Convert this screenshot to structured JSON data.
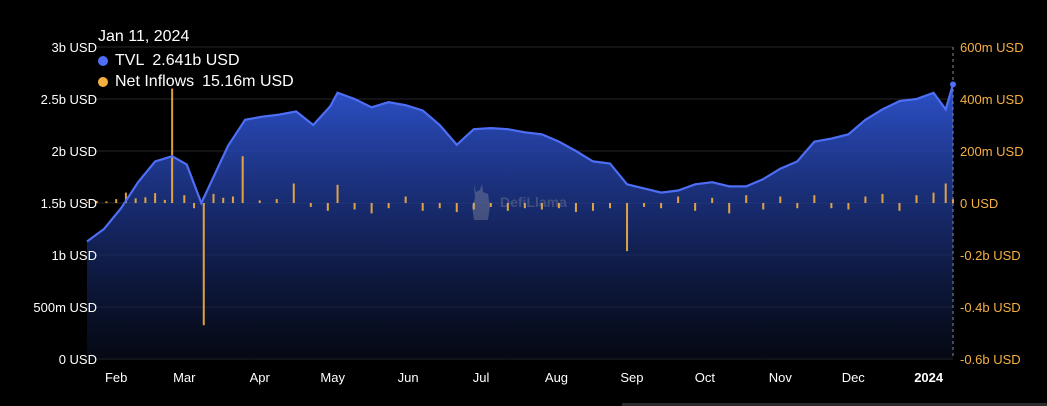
{
  "tooltip": {
    "date": "Jan 11, 2024",
    "tvl_label": "TVL",
    "tvl_value": "2.641b USD",
    "inflows_label": "Net Inflows",
    "inflows_value": "15.16m USD"
  },
  "watermark": "DefiLlama",
  "colors": {
    "tvl_line": "#4d6ef5",
    "inflows_bar": "#f5b041",
    "left_axis_text": "#ffffff",
    "right_axis_text": "#f5b041",
    "background": "#000000"
  },
  "chart_data": {
    "type": "area",
    "x_ticks": [
      "Feb",
      "Mar",
      "Apr",
      "May",
      "Jun",
      "Jul",
      "Aug",
      "Sep",
      "Oct",
      "Nov",
      "Dec",
      "2024"
    ],
    "y_left_ticks": [
      "0 USD",
      "500m USD",
      "1b USD",
      "1.5b USD",
      "2b USD",
      "2.5b USD",
      "3b USD"
    ],
    "y_right_ticks": [
      "-0.6b USD",
      "-0.4b USD",
      "-0.2b USD",
      "0 USD",
      "200m USD",
      "400m USD",
      "600m USD"
    ],
    "y_left_range": [
      0,
      3000000000
    ],
    "y_right_range": [
      -600000000,
      600000000
    ],
    "grid": true,
    "series": [
      {
        "name": "TVL",
        "axis": "left",
        "x": [
          "2023-01-20",
          "2023-01-27",
          "2023-02-03",
          "2023-02-10",
          "2023-02-17",
          "2023-02-24",
          "2023-03-02",
          "2023-03-08",
          "2023-03-12",
          "2023-03-19",
          "2023-03-26",
          "2023-04-02",
          "2023-04-09",
          "2023-04-16",
          "2023-04-23",
          "2023-04-30",
          "2023-05-03",
          "2023-05-10",
          "2023-05-17",
          "2023-05-24",
          "2023-05-31",
          "2023-06-07",
          "2023-06-14",
          "2023-06-21",
          "2023-06-28",
          "2023-07-05",
          "2023-07-12",
          "2023-07-19",
          "2023-07-26",
          "2023-08-02",
          "2023-08-09",
          "2023-08-16",
          "2023-08-23",
          "2023-08-30",
          "2023-09-06",
          "2023-09-13",
          "2023-09-20",
          "2023-09-27",
          "2023-10-04",
          "2023-10-11",
          "2023-10-18",
          "2023-10-25",
          "2023-11-01",
          "2023-11-08",
          "2023-11-15",
          "2023-11-22",
          "2023-11-29",
          "2023-12-06",
          "2023-12-13",
          "2023-12-20",
          "2023-12-27",
          "2024-01-03",
          "2024-01-08",
          "2024-01-11"
        ],
        "values": [
          1130000000,
          1250000000,
          1450000000,
          1700000000,
          1900000000,
          1950000000,
          1870000000,
          1500000000,
          1700000000,
          2050000000,
          2300000000,
          2330000000,
          2350000000,
          2380000000,
          2250000000,
          2430000000,
          2560000000,
          2500000000,
          2420000000,
          2470000000,
          2440000000,
          2390000000,
          2250000000,
          2060000000,
          2210000000,
          2220000000,
          2210000000,
          2180000000,
          2160000000,
          2090000000,
          2000000000,
          1900000000,
          1880000000,
          1680000000,
          1640000000,
          1600000000,
          1620000000,
          1680000000,
          1700000000,
          1660000000,
          1660000000,
          1730000000,
          1830000000,
          1900000000,
          2090000000,
          2120000000,
          2160000000,
          2300000000,
          2400000000,
          2480000000,
          2500000000,
          2560000000,
          2400000000,
          2641000000
        ]
      },
      {
        "name": "Net Inflows",
        "axis": "right",
        "x": [
          "2023-01-20",
          "2023-01-24",
          "2023-01-28",
          "2023-02-01",
          "2023-02-05",
          "2023-02-09",
          "2023-02-13",
          "2023-02-17",
          "2023-02-21",
          "2023-02-24",
          "2023-03-01",
          "2023-03-05",
          "2023-03-09",
          "2023-03-13",
          "2023-03-17",
          "2023-03-21",
          "2023-03-25",
          "2023-04-01",
          "2023-04-08",
          "2023-04-15",
          "2023-04-22",
          "2023-04-29",
          "2023-05-03",
          "2023-05-10",
          "2023-05-17",
          "2023-05-24",
          "2023-05-31",
          "2023-06-07",
          "2023-06-14",
          "2023-06-21",
          "2023-06-28",
          "2023-07-05",
          "2023-07-12",
          "2023-07-19",
          "2023-07-26",
          "2023-08-02",
          "2023-08-09",
          "2023-08-16",
          "2023-08-23",
          "2023-08-30",
          "2023-09-06",
          "2023-09-13",
          "2023-09-20",
          "2023-09-27",
          "2023-10-04",
          "2023-10-11",
          "2023-10-18",
          "2023-10-25",
          "2023-11-01",
          "2023-11-08",
          "2023-11-15",
          "2023-11-22",
          "2023-11-29",
          "2023-12-06",
          "2023-12-13",
          "2023-12-20",
          "2023-12-27",
          "2024-01-03",
          "2024-01-08",
          "2024-01-11"
        ],
        "values": [
          5000000,
          8000000,
          6000000,
          15000000,
          40000000,
          18000000,
          22000000,
          38000000,
          12000000,
          440000000,
          30000000,
          -20000000,
          -470000000,
          35000000,
          20000000,
          25000000,
          180000000,
          10000000,
          15000000,
          75000000,
          -15000000,
          -30000000,
          70000000,
          -25000000,
          -40000000,
          -20000000,
          25000000,
          -30000000,
          -20000000,
          -35000000,
          -25000000,
          -15000000,
          -30000000,
          -20000000,
          -25000000,
          -20000000,
          -35000000,
          -30000000,
          -20000000,
          -185000000,
          -15000000,
          -20000000,
          25000000,
          -30000000,
          20000000,
          -40000000,
          30000000,
          -25000000,
          25000000,
          -20000000,
          30000000,
          -20000000,
          -25000000,
          25000000,
          35000000,
          -30000000,
          30000000,
          40000000,
          75000000,
          15160000
        ]
      }
    ]
  }
}
